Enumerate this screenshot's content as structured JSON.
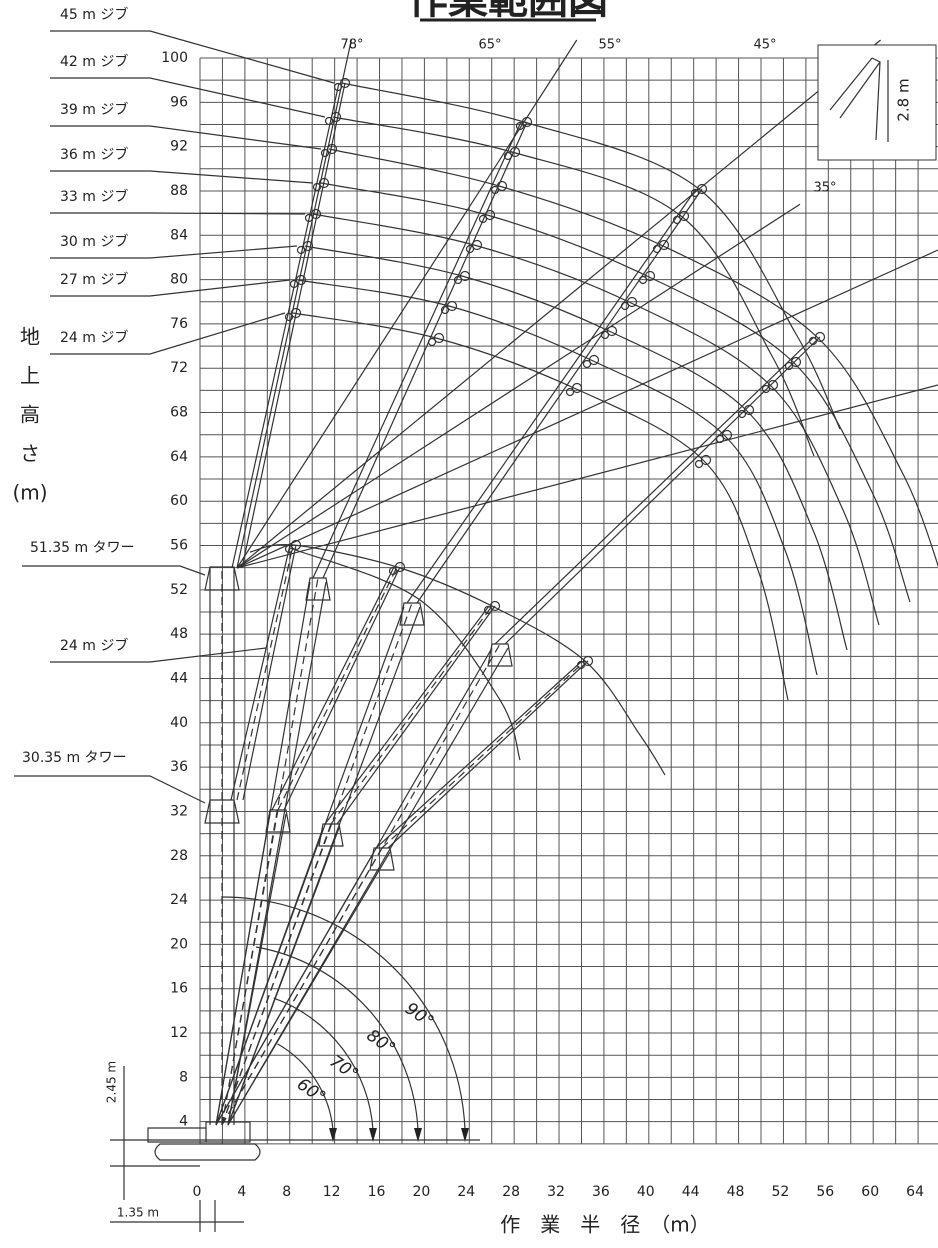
{
  "title": "作業範囲図",
  "y_axis_label": [
    "地",
    "上",
    "高",
    "さ",
    "(m)"
  ],
  "x_axis_label": "作　業　半　径　（m）",
  "x_ticks": [
    0,
    4,
    8,
    12,
    16,
    20,
    24,
    28,
    32,
    36,
    40,
    44,
    48,
    52,
    56,
    60,
    64
  ],
  "y_ticks": [
    4,
    8,
    12,
    16,
    20,
    24,
    28,
    32,
    36,
    40,
    44,
    48,
    52,
    56,
    60,
    64,
    68,
    72,
    76,
    80,
    84,
    88,
    92,
    96,
    100
  ],
  "boom_angle_labels": [
    "78°",
    "65°",
    "55°",
    "45°",
    "35°"
  ],
  "tower_angle_labels": [
    "90°",
    "80°",
    "70°",
    "60°"
  ],
  "jib_labels": [
    "45 m ジブ",
    "42 m ジブ",
    "39 m ジブ",
    "36 m ジブ",
    "33 m ジブ",
    "30 m ジブ",
    "27 m ジブ",
    "24 m ジブ"
  ],
  "tower_labels": {
    "upper": "51.35 m タワー",
    "jib": "24 m ジブ",
    "lower": "30.35 m タワー"
  },
  "dimensions": {
    "jib_offset": "2.8 m",
    "pivot_height": "2.45 m",
    "pivot_offset": "1.35 m"
  }
}
